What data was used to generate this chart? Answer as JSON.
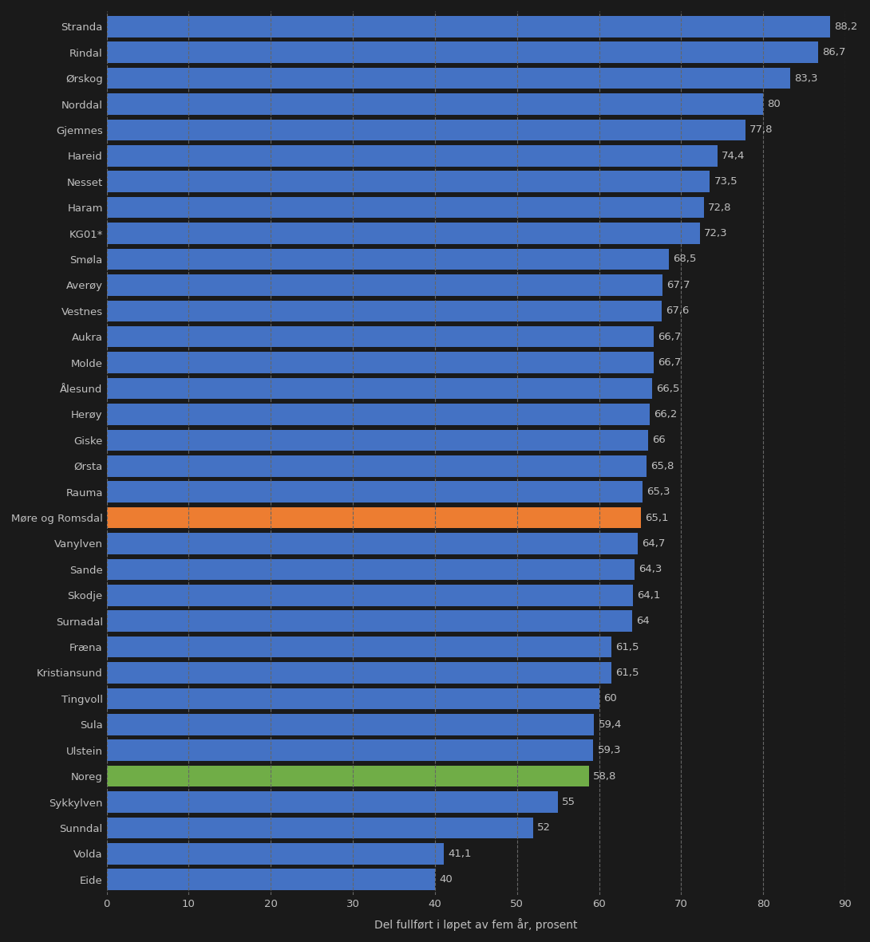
{
  "categories": [
    "Eide",
    "Volda",
    "Sunndal",
    "Sykkylven",
    "Noreg",
    "Ulstein",
    "Sula",
    "Tingvoll",
    "Kristiansund",
    "Fræna",
    "Surnadal",
    "Skodje",
    "Sande",
    "Vanylven",
    "Møre og Romsdal",
    "Rauma",
    "Ørsta",
    "Giske",
    "Herøy",
    "Ålesund",
    "Molde",
    "Aukra",
    "Vestnes",
    "Averøy",
    "Smøla",
    "KG01*",
    "Haram",
    "Nesset",
    "Hareid",
    "Gjemnes",
    "Norddal",
    "Ørskog",
    "Rindal",
    "Stranda"
  ],
  "values": [
    40,
    41.1,
    52,
    55,
    58.8,
    59.3,
    59.4,
    60,
    61.5,
    61.5,
    64,
    64.1,
    64.3,
    64.7,
    65.1,
    65.3,
    65.8,
    66,
    66.2,
    66.5,
    66.7,
    66.7,
    67.6,
    67.7,
    68.5,
    72.3,
    72.8,
    73.5,
    74.4,
    77.8,
    80,
    83.3,
    86.7,
    88.2
  ],
  "bar_colors": [
    "#4472c4",
    "#4472c4",
    "#4472c4",
    "#4472c4",
    "#70ad47",
    "#4472c4",
    "#4472c4",
    "#4472c4",
    "#4472c4",
    "#4472c4",
    "#4472c4",
    "#4472c4",
    "#4472c4",
    "#4472c4",
    "#ed7d31",
    "#4472c4",
    "#4472c4",
    "#4472c4",
    "#4472c4",
    "#4472c4",
    "#4472c4",
    "#4472c4",
    "#4472c4",
    "#4472c4",
    "#4472c4",
    "#4472c4",
    "#4472c4",
    "#4472c4",
    "#4472c4",
    "#4472c4",
    "#4472c4",
    "#4472c4",
    "#4472c4",
    "#4472c4"
  ],
  "value_labels": [
    "40",
    "41,1",
    "52",
    "55",
    "58,8",
    "59,3",
    "59,4",
    "60",
    "61,5",
    "61,5",
    "64",
    "64,1",
    "64,3",
    "64,7",
    "65,1",
    "65,3",
    "65,8",
    "66",
    "66,2",
    "66,5",
    "66,7",
    "66,7",
    "67,6",
    "67,7",
    "68,5",
    "72,3",
    "72,8",
    "73,5",
    "74,4",
    "77,8",
    "80",
    "83,3",
    "86,7",
    "88,2"
  ],
  "xlabel": "Del fullført i løpet av fem år, prosent",
  "xlim": [
    0,
    90
  ],
  "xticks": [
    0,
    10,
    20,
    30,
    40,
    50,
    60,
    70,
    80,
    90
  ],
  "background_color": "#1a1a1a",
  "bar_height": 0.82,
  "grid_color": "#666666",
  "text_color": "#c0c0c0",
  "label_fontsize": 9.5,
  "tick_fontsize": 9.5,
  "xlabel_fontsize": 10
}
